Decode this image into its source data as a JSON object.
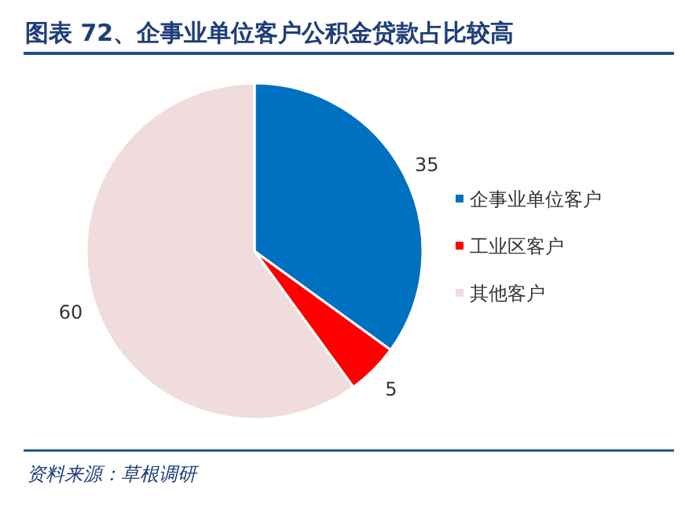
{
  "chart_data": {
    "type": "pie",
    "title": "图表 72、企事业单位客户公积金贷款占比较高",
    "categories": [
      "企事业单位客户",
      "工业区客户",
      "其他客户"
    ],
    "values": [
      35,
      5,
      60
    ],
    "colors": [
      "#0070c0",
      "#ff0000",
      "#f0dcdc"
    ],
    "data_labels": true,
    "legend": "right",
    "annotations": [
      "资料来源：草根调研"
    ]
  }
}
